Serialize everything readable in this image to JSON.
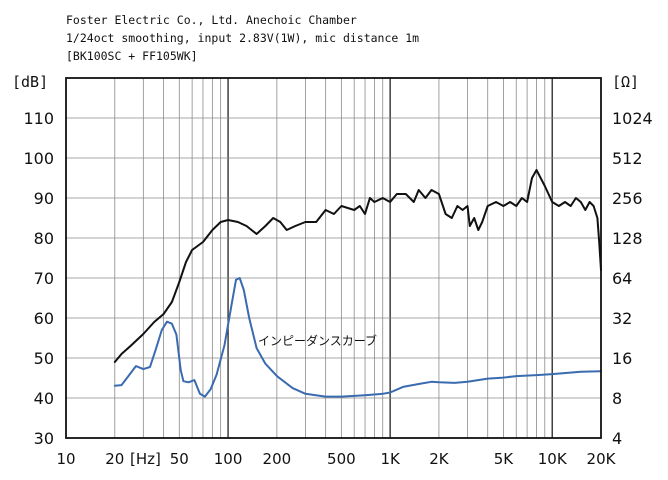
{
  "header": {
    "line1": "Foster Electric Co., Ltd. Anechoic Chamber",
    "line2": "1/24oct smoothing, input 2.83V(1W), mic distance 1m",
    "line3": "[BK100SC + FF105WK]"
  },
  "chart_data": {
    "type": "line",
    "title": "",
    "x_scale": "log",
    "xlim": [
      10,
      20000
    ],
    "ylim": [
      30,
      120
    ],
    "y2lim": [
      4,
      2048
    ],
    "y2_scale": "log2",
    "grid": true,
    "y_unit_label": "[dB]",
    "y2_unit_label": "[Ω]",
    "x_unit_label": "[Hz]",
    "x_ticks": [
      {
        "value": 10,
        "label": "10"
      },
      {
        "value": 20,
        "label": "20"
      },
      {
        "value": 50,
        "label": "50"
      },
      {
        "value": 100,
        "label": "100"
      },
      {
        "value": 200,
        "label": "200"
      },
      {
        "value": 500,
        "label": "500"
      },
      {
        "value": 1000,
        "label": "1K"
      },
      {
        "value": 2000,
        "label": "2K"
      },
      {
        "value": 5000,
        "label": "5K"
      },
      {
        "value": 10000,
        "label": "10K"
      },
      {
        "value": 20000,
        "label": "20K"
      }
    ],
    "y_ticks": [
      "30",
      "40",
      "50",
      "60",
      "70",
      "80",
      "90",
      "100",
      "110"
    ],
    "y2_ticks": [
      "4",
      "8",
      "16",
      "32",
      "64",
      "128",
      "256",
      "512",
      "1024"
    ],
    "series": [
      {
        "color": "#111111",
        "axis": "left",
        "points": [
          [
            20,
            49
          ],
          [
            22,
            51
          ],
          [
            25,
            53
          ],
          [
            30,
            56
          ],
          [
            35,
            59
          ],
          [
            40,
            61
          ],
          [
            45,
            64
          ],
          [
            50,
            69
          ],
          [
            55,
            74
          ],
          [
            60,
            77
          ],
          [
            70,
            79
          ],
          [
            80,
            82
          ],
          [
            90,
            84
          ],
          [
            100,
            84.5
          ],
          [
            115,
            84
          ],
          [
            130,
            83
          ],
          [
            150,
            81
          ],
          [
            170,
            83
          ],
          [
            190,
            85
          ],
          [
            210,
            84
          ],
          [
            230,
            82
          ],
          [
            260,
            83
          ],
          [
            300,
            84
          ],
          [
            350,
            84
          ],
          [
            400,
            87
          ],
          [
            450,
            86
          ],
          [
            500,
            88
          ],
          [
            600,
            87
          ],
          [
            650,
            88
          ],
          [
            700,
            86
          ],
          [
            750,
            90
          ],
          [
            800,
            89
          ],
          [
            900,
            90
          ],
          [
            1000,
            89
          ],
          [
            1100,
            91
          ],
          [
            1250,
            91
          ],
          [
            1400,
            89
          ],
          [
            1500,
            92
          ],
          [
            1650,
            90
          ],
          [
            1800,
            92
          ],
          [
            2000,
            91
          ],
          [
            2200,
            86
          ],
          [
            2400,
            85
          ],
          [
            2600,
            88
          ],
          [
            2800,
            87
          ],
          [
            3000,
            88
          ],
          [
            3100,
            83
          ],
          [
            3300,
            85
          ],
          [
            3500,
            82
          ],
          [
            3700,
            84
          ],
          [
            4000,
            88
          ],
          [
            4500,
            89
          ],
          [
            5000,
            88
          ],
          [
            5500,
            89
          ],
          [
            6000,
            88
          ],
          [
            6500,
            90
          ],
          [
            7000,
            89
          ],
          [
            7500,
            95
          ],
          [
            8000,
            97
          ],
          [
            9000,
            93
          ],
          [
            10000,
            89
          ],
          [
            11000,
            88
          ],
          [
            12000,
            89
          ],
          [
            13000,
            88
          ],
          [
            14000,
            90
          ],
          [
            15000,
            89
          ],
          [
            16000,
            87
          ],
          [
            17000,
            89
          ],
          [
            18000,
            88
          ],
          [
            19000,
            85
          ],
          [
            19500,
            79
          ],
          [
            20000,
            72
          ]
        ]
      },
      {
        "name": "インピーダンスカーブ",
        "color": "#3a6bb0",
        "axis": "right",
        "points": [
          [
            20,
            9.9
          ],
          [
            22,
            10
          ],
          [
            24,
            11.5
          ],
          [
            27,
            13.9
          ],
          [
            30,
            13.2
          ],
          [
            33,
            13.7
          ],
          [
            36,
            19
          ],
          [
            39,
            26
          ],
          [
            42,
            30
          ],
          [
            45,
            29
          ],
          [
            48,
            24
          ],
          [
            51,
            13
          ],
          [
            53,
            10.7
          ],
          [
            57,
            10.5
          ],
          [
            62,
            10.9
          ],
          [
            67,
            8.6
          ],
          [
            72,
            8.2
          ],
          [
            78,
            9.3
          ],
          [
            85,
            12
          ],
          [
            95,
            20
          ],
          [
            105,
            40
          ],
          [
            112,
            62
          ],
          [
            118,
            64
          ],
          [
            125,
            52
          ],
          [
            135,
            32
          ],
          [
            150,
            19
          ],
          [
            170,
            14.5
          ],
          [
            200,
            11.7
          ],
          [
            250,
            9.5
          ],
          [
            300,
            8.6
          ],
          [
            400,
            8.2
          ],
          [
            500,
            8.2
          ],
          [
            700,
            8.4
          ],
          [
            900,
            8.6
          ],
          [
            1000,
            8.8
          ],
          [
            1200,
            9.7
          ],
          [
            1500,
            10.2
          ],
          [
            1800,
            10.6
          ],
          [
            2000,
            10.5
          ],
          [
            2500,
            10.4
          ],
          [
            3000,
            10.6
          ],
          [
            4000,
            11.2
          ],
          [
            5000,
            11.4
          ],
          [
            6000,
            11.7
          ],
          [
            8000,
            11.9
          ],
          [
            10000,
            12.1
          ],
          [
            15000,
            12.6
          ],
          [
            20000,
            12.7
          ]
        ]
      }
    ]
  }
}
